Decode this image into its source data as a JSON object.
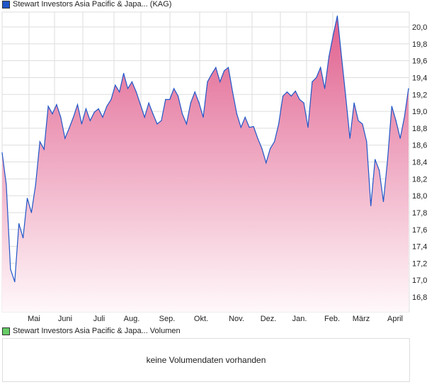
{
  "legend_price": "Stewart Investors Asia Pacific & Japa... (KAG)",
  "legend_volume": "Stewart Investors Asia Pacific & Japa... Volumen",
  "volume_message": "keine Volumendaten vorhanden",
  "colors": {
    "line": "#1f56c8",
    "fill_top": "#e0608e",
    "fill_bottom": "#fff8fa",
    "price_swatch": "#1f56c8",
    "volume_swatch": "#66cc66",
    "grid": "#dddddd"
  },
  "chart_data": {
    "type": "area",
    "title": "Stewart Investors Asia Pacific & Japa... (KAG)",
    "xlabel": "",
    "ylabel": "",
    "x_tick_labels": [
      "Mai",
      "Juni",
      "Juli",
      "Aug.",
      "Sep.",
      "Okt.",
      "Nov.",
      "Dez.",
      "Jan.",
      "Feb.",
      "März",
      "April"
    ],
    "y_ticks": [
      "16,8",
      "17,0",
      "17,2",
      "17,4",
      "17,6",
      "17,8",
      "18,0",
      "18,2",
      "18,4",
      "18,6",
      "18,8",
      "19,0",
      "19,2",
      "19,4",
      "19,6",
      "19,8",
      "20,0"
    ],
    "ylim": [
      16.62,
      20.18
    ],
    "grid": true,
    "values": [
      18.51,
      18.13,
      17.13,
      16.98,
      17.67,
      17.5,
      17.97,
      17.8,
      18.13,
      18.64,
      18.55,
      19.06,
      18.97,
      19.08,
      18.93,
      18.68,
      18.8,
      18.93,
      19.08,
      18.85,
      19.03,
      18.89,
      18.99,
      19.03,
      18.93,
      19.06,
      19.14,
      19.31,
      19.23,
      19.45,
      19.27,
      19.35,
      19.23,
      19.08,
      18.93,
      19.1,
      18.97,
      18.85,
      18.89,
      19.14,
      19.14,
      19.27,
      19.18,
      18.97,
      18.85,
      19.1,
      19.23,
      19.1,
      18.93,
      19.35,
      19.44,
      19.52,
      19.35,
      19.48,
      19.52,
      19.23,
      18.97,
      18.81,
      18.93,
      18.81,
      18.82,
      18.68,
      18.56,
      18.39,
      18.56,
      18.64,
      18.85,
      19.18,
      19.23,
      19.18,
      19.24,
      19.14,
      19.1,
      18.81,
      19.35,
      19.4,
      19.52,
      19.27,
      19.65,
      19.9,
      20.13,
      19.65,
      19.18,
      18.68,
      19.1,
      18.89,
      18.85,
      18.64,
      17.88,
      18.43,
      18.3,
      17.93,
      18.43,
      19.06,
      18.89,
      18.68,
      18.93,
      19.27
    ]
  }
}
